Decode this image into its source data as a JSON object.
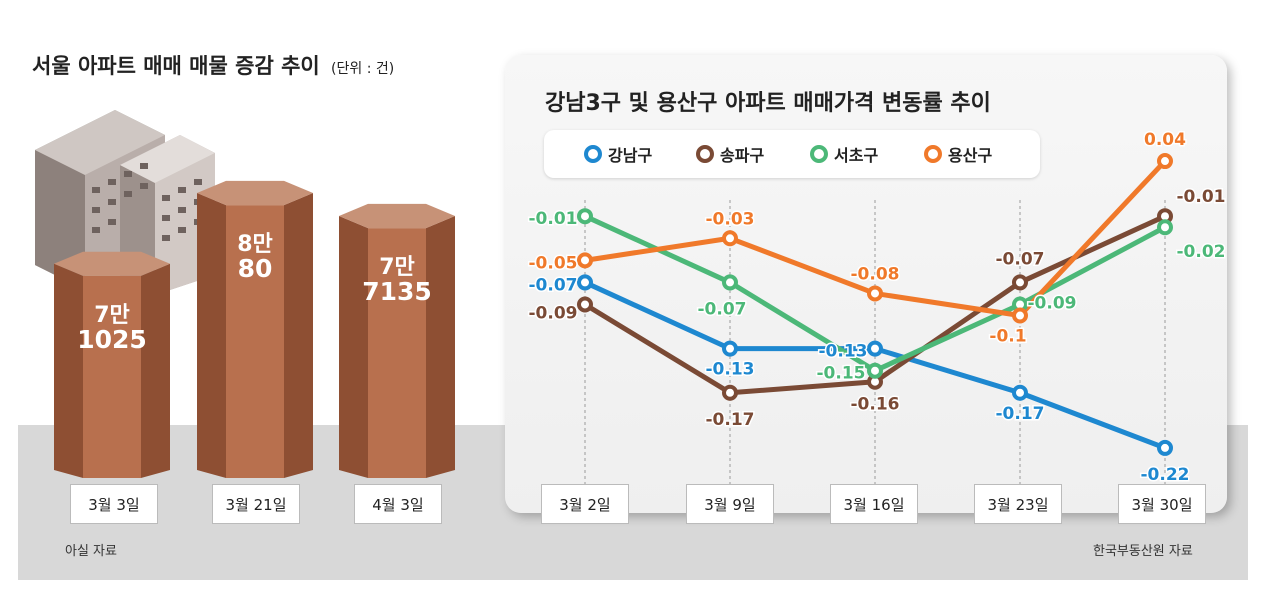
{
  "left_chart": {
    "title": "서울 아파트 매매 매물 증감 추이",
    "unit": "(단위 : 건)",
    "source": "아실 자료"
  },
  "right_chart": {
    "title": "강남3구 및 용산구 아파트 매매가격 변동률 추이",
    "source": "한국부동산원 자료"
  },
  "colors": {
    "bar_front": "#b8704e",
    "bar_side": "#8e4f33",
    "bar_top": "#c79277",
    "gangnam": "#1e88d0",
    "songpa": "#7a4a35",
    "seocho": "#4cb878",
    "yongsan": "#f0792a"
  },
  "chart_data": [
    {
      "type": "bar",
      "title": "서울 아파트 매매 매물 증감 추이",
      "unit": "(단위 : 건)",
      "categories": [
        "3월 3일",
        "3월 21일",
        "4월 3일"
      ],
      "values": [
        71025,
        80080,
        77135
      ],
      "value_labels": [
        {
          "line1": "7만",
          "line2": "1025"
        },
        {
          "line1": "8만",
          "line2": "80"
        },
        {
          "line1": "7만",
          "line2": "7135"
        }
      ]
    },
    {
      "type": "line",
      "title": "강남3구 및 용산구 아파트 매매가격 변동률 추이",
      "categories": [
        "3월 2일",
        "3월 9일",
        "3월 16일",
        "3월 23일",
        "3월 30일"
      ],
      "ylim": [
        -0.24,
        0.05
      ],
      "series": [
        {
          "name": "강남구",
          "color": "#1e88d0",
          "values": [
            -0.07,
            -0.13,
            -0.13,
            -0.17,
            -0.22
          ],
          "labels": [
            "-0.07",
            "-0.13",
            "-0.13",
            "-0.17",
            "-0.22"
          ]
        },
        {
          "name": "송파구",
          "color": "#7a4a35",
          "values": [
            -0.09,
            -0.17,
            -0.16,
            -0.07,
            -0.01
          ],
          "labels": [
            "-0.09",
            "-0.17",
            "-0.16",
            "-0.07",
            "-0.01"
          ]
        },
        {
          "name": "서초구",
          "color": "#4cb878",
          "values": [
            -0.01,
            -0.07,
            -0.15,
            -0.09,
            -0.02
          ],
          "labels": [
            "-0.01",
            "-0.07",
            "-0.15",
            "-0.09",
            "-0.02"
          ]
        },
        {
          "name": "용산구",
          "color": "#f0792a",
          "values": [
            -0.05,
            -0.03,
            -0.08,
            -0.1,
            0.04
          ],
          "labels": [
            "-0.05",
            "-0.03",
            "-0.08",
            "-0.1",
            "0.04"
          ]
        }
      ]
    }
  ]
}
